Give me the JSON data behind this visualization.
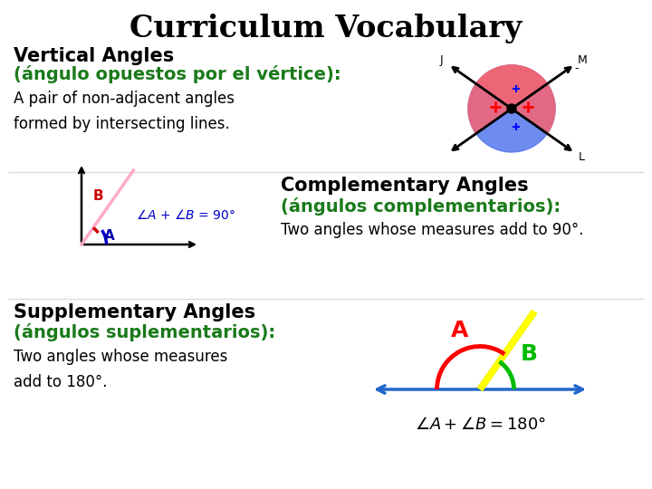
{
  "title": "Curriculum Vocabulary",
  "title_fontsize": 24,
  "title_fontweight": "bold",
  "title_color": "#000000",
  "background_color": "#ffffff",
  "section1_heading": "Vertical Angles",
  "section1_subheading": "(ángulo opuestos por el vértice):",
  "section1_body": "A pair of non-adjacent angles\nformed by intersecting lines.",
  "section2_heading": "Complementary Angles",
  "section2_subheading": "(ángulos complementarios):",
  "section2_body": "Two angles whose measures add to 90°.",
  "section3_heading": "Supplementary Angles",
  "section3_subheading": "(ángulos suplementarios):",
  "section3_body": "Two angles whose measures\nadd to 180°.",
  "heading_color": "#000000",
  "subheading_color": "#1a7a1a",
  "body_color": "#000000",
  "heading_fontsize": 15,
  "subheading_fontsize": 14,
  "body_fontsize": 12
}
